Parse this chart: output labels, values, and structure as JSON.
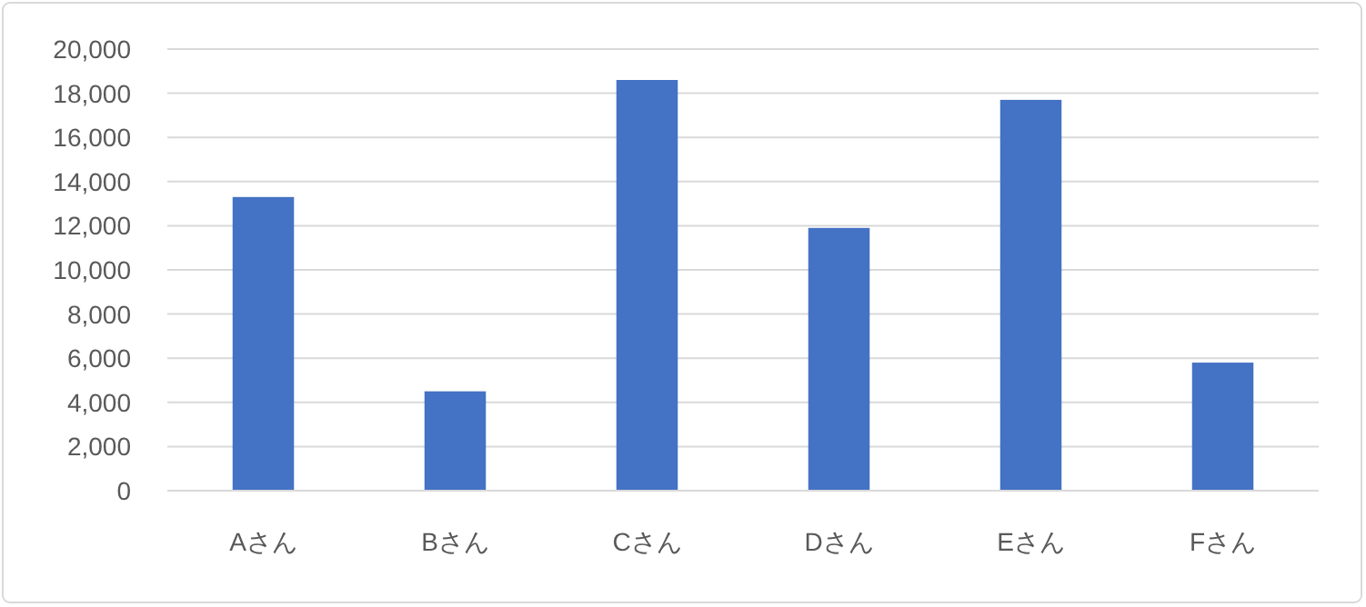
{
  "chart_data": {
    "type": "bar",
    "categories": [
      "Aさん",
      "Bさん",
      "Cさん",
      "Dさん",
      "Eさん",
      "Fさん"
    ],
    "values": [
      13300,
      4500,
      18600,
      11900,
      17700,
      5800
    ],
    "color": "#4472c4",
    "ylim": [
      0,
      20000
    ],
    "yticks": [
      0,
      {
        "value": 2000,
        "label": "2,000"
      },
      {
        "value": 4000,
        "label": "4,000"
      },
      {
        "value": 6000,
        "label": "6,000"
      },
      {
        "value": 8000,
        "label": "8,000"
      },
      {
        "value": 10000,
        "label": "10,000"
      },
      {
        "value": 12000,
        "label": "12,000"
      },
      {
        "value": 14000,
        "label": "14,000"
      },
      {
        "value": 16000,
        "label": "16,000"
      },
      {
        "value": 18000,
        "label": "18,000"
      },
      {
        "value": 20000,
        "label": "20,000"
      }
    ],
    "grid": "y"
  }
}
